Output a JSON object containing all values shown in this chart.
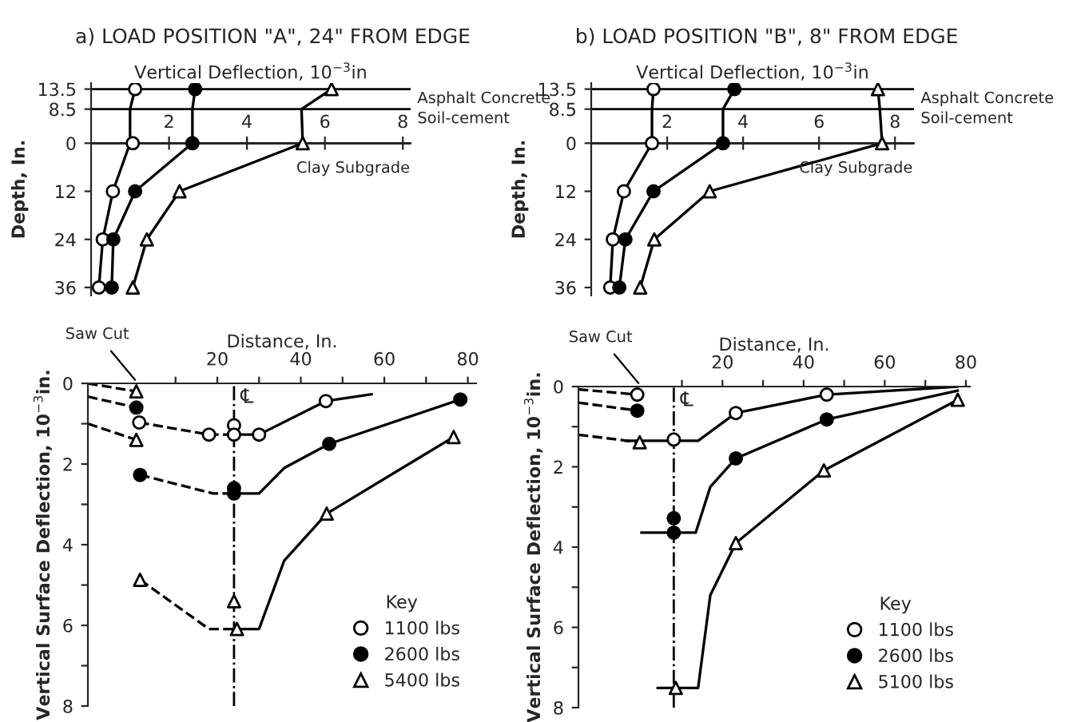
{
  "chart_data": [
    {
      "type": "line",
      "title": "a) LOAD POSITION \"A\", 24\" FROM EDGE",
      "xlabel": "Vertical Deflection, 10$^{−3}$in",
      "ylabel": "Depth, In.",
      "xlim": [
        0,
        8.2
      ],
      "xticks": [
        2,
        4,
        6,
        8
      ],
      "ylim": [
        38,
        -15
      ],
      "yticks": [
        {
          "value": -13.5,
          "label": "13.5"
        },
        {
          "value": -8.5,
          "label": "8.5"
        },
        0,
        12,
        24,
        36
      ],
      "legend": false,
      "ref_lines": [
        {
          "axis": "y",
          "value": -13.5,
          "label": "Asphalt Concrete"
        },
        {
          "axis": "y",
          "value": -8.5,
          "label": "Soil-cement"
        },
        {
          "axis": "y",
          "value": 0,
          "label": "Clay Subgrade"
        }
      ],
      "series": [
        {
          "type": "line",
          "color": "#000000",
          "x": [
            1.13,
            1.0,
            1.0,
            0.56,
            0.3,
            0.2
          ],
          "values": [
            -13.5,
            -8.5,
            0,
            12,
            24,
            36
          ]
        },
        {
          "type": "line",
          "color": "#000000",
          "x": [
            2.67,
            2.6,
            2.6,
            1.13,
            0.57,
            0.53
          ],
          "values": [
            -13.5,
            -8.5,
            0,
            12,
            24,
            36
          ]
        },
        {
          "type": "line",
          "color": "#000000",
          "x": [
            6.17,
            5.4,
            5.43,
            2.27,
            1.43,
            1.07
          ],
          "values": [
            -13.5,
            -8.5,
            0,
            12,
            24,
            36
          ]
        },
        {
          "type": "scatter",
          "marker": "circle",
          "color": "#ffffff",
          "x": [
            1.13,
            1.07,
            0.56,
            0.3,
            0.2
          ],
          "values": [
            -13.5,
            0,
            12,
            24,
            36
          ]
        },
        {
          "type": "scatter",
          "marker": "circle",
          "color": "#000000",
          "x": [
            2.67,
            2.6,
            1.13,
            0.57,
            0.53
          ],
          "values": [
            -13.5,
            0,
            12,
            24,
            36
          ]
        },
        {
          "type": "scatter",
          "marker": "triangle",
          "color": "#ffffff",
          "x": [
            6.17,
            5.43,
            2.27,
            1.43,
            1.07
          ],
          "values": [
            -13.5,
            0,
            12,
            24,
            36
          ]
        }
      ]
    },
    {
      "type": "line",
      "title": "b) LOAD POSITION \"B\", 8\" FROM EDGE",
      "xlabel": "Vertical Deflection, 10$^{−3}$in",
      "ylabel": "Depth, In.",
      "xlim": [
        0,
        8.5
      ],
      "xticks": [
        2,
        4,
        6,
        8
      ],
      "ylim": [
        38,
        -15
      ],
      "yticks": [
        {
          "value": -13.5,
          "label": "13.5"
        },
        {
          "value": -8.5,
          "label": "8.5"
        },
        0,
        12,
        24,
        36
      ],
      "legend": false,
      "ref_lines": [
        {
          "axis": "y",
          "value": -13.5,
          "label": "Asphalt Concrete"
        },
        {
          "axis": "y",
          "value": -8.5,
          "label": "Soil-cement"
        },
        {
          "axis": "y",
          "value": 0,
          "label": "Clay Subgrade"
        }
      ],
      "series": [
        {
          "type": "line",
          "color": "#000000",
          "x": [
            1.64,
            1.6,
            1.6,
            0.86,
            0.57,
            0.5
          ],
          "values": [
            -13.5,
            -8.5,
            0,
            12,
            24,
            36
          ]
        },
        {
          "type": "line",
          "color": "#000000",
          "x": [
            3.77,
            3.47,
            3.47,
            1.64,
            0.9,
            0.74
          ],
          "values": [
            -13.5,
            -8.5,
            0,
            12,
            24,
            36
          ]
        },
        {
          "type": "line",
          "color": "#000000",
          "x": [
            7.55,
            7.6,
            7.66,
            3.12,
            1.66,
            1.29
          ],
          "values": [
            -13.5,
            -8.5,
            0,
            12,
            24,
            36
          ]
        },
        {
          "type": "scatter",
          "marker": "circle",
          "color": "#ffffff",
          "x": [
            1.64,
            1.6,
            0.86,
            0.57,
            0.5
          ],
          "values": [
            -13.5,
            0,
            12,
            24,
            36
          ]
        },
        {
          "type": "scatter",
          "marker": "circle",
          "color": "#000000",
          "x": [
            3.77,
            3.47,
            1.64,
            0.9,
            0.74
          ],
          "values": [
            -13.5,
            0,
            12,
            24,
            36
          ]
        },
        {
          "type": "scatter",
          "marker": "triangle",
          "color": "#ffffff",
          "x": [
            7.55,
            7.66,
            3.12,
            1.66,
            1.29
          ],
          "values": [
            -13.5,
            0,
            12,
            24,
            36
          ]
        }
      ]
    },
    {
      "type": "line",
      "xlabel": "Distance, In.",
      "ylabel": "Vertical Surface Deflection, 10$^{−3}$in.",
      "xlim": [
        -11,
        82
      ],
      "xticks": [
        {
          "value": 10,
          "label": null
        },
        20,
        {
          "value": 30,
          "label": null
        },
        40,
        {
          "value": 50,
          "label": null
        },
        60,
        {
          "value": 70,
          "label": null
        },
        80
      ],
      "ylim": [
        8,
        0
      ],
      "yticks": [
        0,
        {
          "value": 1,
          "label": null
        },
        2,
        {
          "value": 3,
          "label": null
        },
        4,
        {
          "value": 5,
          "label": null
        },
        6,
        {
          "value": 7,
          "label": null
        },
        8
      ],
      "legend": "bottom right",
      "legend_title": "Key",
      "ref_lines": [
        {
          "axis": "x",
          "value": 24,
          "label": "℄",
          "line_style": "dashed"
        }
      ],
      "annotations": [
        {
          "text": "Saw Cut",
          "x": 1,
          "y": 0
        }
      ],
      "series": [
        {
          "type": "line",
          "line_style": "dashed",
          "color": "#000000",
          "x": [
            -11,
            0.6
          ],
          "values": [
            0.0,
            0.2
          ]
        },
        {
          "type": "line",
          "line_style": "dashed",
          "color": "#000000",
          "x": [
            1.3,
            18,
            24
          ],
          "values": [
            0.97,
            1.27,
            1.27
          ]
        },
        {
          "type": "line",
          "color": "#000000",
          "x": [
            24,
            30,
            46,
            57
          ],
          "values": [
            1.27,
            1.27,
            0.44,
            0.27
          ]
        },
        {
          "type": "line",
          "line_style": "dashed",
          "color": "#000000",
          "x": [
            -11,
            0.6
          ],
          "values": [
            0.33,
            0.6
          ]
        },
        {
          "type": "line",
          "line_style": "dashed",
          "color": "#000000",
          "x": [
            1.5,
            19,
            24
          ],
          "values": [
            2.27,
            2.73,
            2.73
          ]
        },
        {
          "type": "line",
          "color": "#000000",
          "x": [
            24,
            30,
            36,
            46.8,
            78.2
          ],
          "values": [
            2.73,
            2.73,
            2.1,
            1.5,
            0.4
          ]
        },
        {
          "type": "line",
          "line_style": "dashed",
          "color": "#000000",
          "x": [
            -11,
            0.6
          ],
          "values": [
            1.0,
            1.4
          ]
        },
        {
          "type": "line",
          "line_style": "dashed",
          "color": "#000000",
          "x": [
            1.5,
            18,
            24.7
          ],
          "values": [
            4.87,
            6.09,
            6.09
          ]
        },
        {
          "type": "line",
          "color": "#000000",
          "x": [
            24.7,
            30,
            36,
            46.2,
            76.6
          ],
          "values": [
            6.09,
            6.09,
            4.4,
            3.23,
            1.33
          ]
        },
        {
          "type": "scatter",
          "name": "1100 lbs",
          "marker": "circle",
          "color": "#ffffff",
          "x": [
            1.3,
            18,
            24,
            24,
            30,
            46
          ],
          "values": [
            0.97,
            1.27,
            1.04,
            1.27,
            1.27,
            0.44
          ]
        },
        {
          "type": "scatter",
          "name": "2600 lbs",
          "marker": "circle",
          "color": "#000000",
          "x": [
            0.6,
            1.5,
            24,
            24,
            46.8,
            78.2
          ],
          "values": [
            0.6,
            2.27,
            2.6,
            2.73,
            1.5,
            0.4
          ]
        },
        {
          "type": "scatter",
          "name": "5400 lbs",
          "marker": "triangle",
          "color": "#ffffff",
          "x": [
            0.6,
            0.6,
            1.5,
            24,
            24.7,
            46.2,
            76.6
          ],
          "values": [
            0.2,
            1.4,
            4.87,
            5.4,
            6.09,
            3.23,
            1.33
          ]
        }
      ]
    },
    {
      "type": "line",
      "xlabel": "Distance, In.",
      "ylabel": "Vertical Surface Deflection, 10$^{−3}$in.",
      "xlim": [
        -15.5,
        81
      ],
      "xticks": [
        {
          "value": 10,
          "label": null
        },
        20,
        {
          "value": 30,
          "label": null
        },
        40,
        {
          "value": 50,
          "label": null
        },
        60,
        {
          "value": 70,
          "label": null
        },
        80
      ],
      "ylim": [
        8,
        0
      ],
      "yticks": [
        0,
        {
          "value": 1,
          "label": null
        },
        2,
        {
          "value": 3,
          "label": null
        },
        4,
        {
          "value": 5,
          "label": null
        },
        6,
        {
          "value": 7,
          "label": null
        },
        8
      ],
      "legend": "bottom right",
      "legend_title": "Key",
      "ref_lines": [
        {
          "axis": "x",
          "value": 8,
          "label": "℄",
          "line_style": "dashed"
        }
      ],
      "annotations": [
        {
          "text": "Saw Cut",
          "x": 0,
          "y": 0
        }
      ],
      "series": [
        {
          "type": "line",
          "line_style": "dashed",
          "color": "#000000",
          "x": [
            -15.5,
            -1
          ],
          "values": [
            0.07,
            0.2
          ]
        },
        {
          "type": "line",
          "color": "#000000",
          "x": [
            -4,
            14,
            23.3,
            45.7,
            78
          ],
          "values": [
            1.35,
            1.35,
            0.66,
            0.2,
            0.0
          ]
        },
        {
          "type": "line",
          "line_style": "dashed",
          "color": "#000000",
          "x": [
            -15.5,
            -1
          ],
          "values": [
            0.4,
            0.6
          ]
        },
        {
          "type": "line",
          "color": "#000000",
          "x": [
            0,
            13.4,
            17,
            23.3,
            45.7,
            78
          ],
          "values": [
            3.64,
            3.64,
            2.5,
            1.79,
            0.82,
            0.1
          ]
        },
        {
          "type": "line",
          "line_style": "dashed",
          "color": "#000000",
          "x": [
            -15.5,
            -0.4
          ],
          "values": [
            1.2,
            1.39
          ]
        },
        {
          "type": "line",
          "color": "#000000",
          "x": [
            4,
            14,
            17,
            23.3,
            45,
            78
          ],
          "values": [
            7.51,
            7.51,
            5.2,
            3.9,
            2.09,
            0.33
          ]
        },
        {
          "type": "scatter",
          "name": "1100 lbs",
          "marker": "circle",
          "color": "#ffffff",
          "x": [
            -1,
            8,
            23.3,
            45.7
          ],
          "values": [
            0.2,
            1.32,
            0.66,
            0.2
          ]
        },
        {
          "type": "scatter",
          "name": "2600 lbs",
          "marker": "circle",
          "color": "#000000",
          "x": [
            -1,
            8,
            8,
            23.3,
            45.7
          ],
          "values": [
            0.6,
            3.28,
            3.64,
            1.79,
            0.82
          ]
        },
        {
          "type": "scatter",
          "name": "5100 lbs",
          "marker": "triangle",
          "color": "#ffffff",
          "x": [
            -0.4,
            8.5,
            23.3,
            45,
            78
          ],
          "values": [
            1.39,
            7.51,
            3.9,
            2.09,
            0.33
          ]
        }
      ]
    }
  ]
}
